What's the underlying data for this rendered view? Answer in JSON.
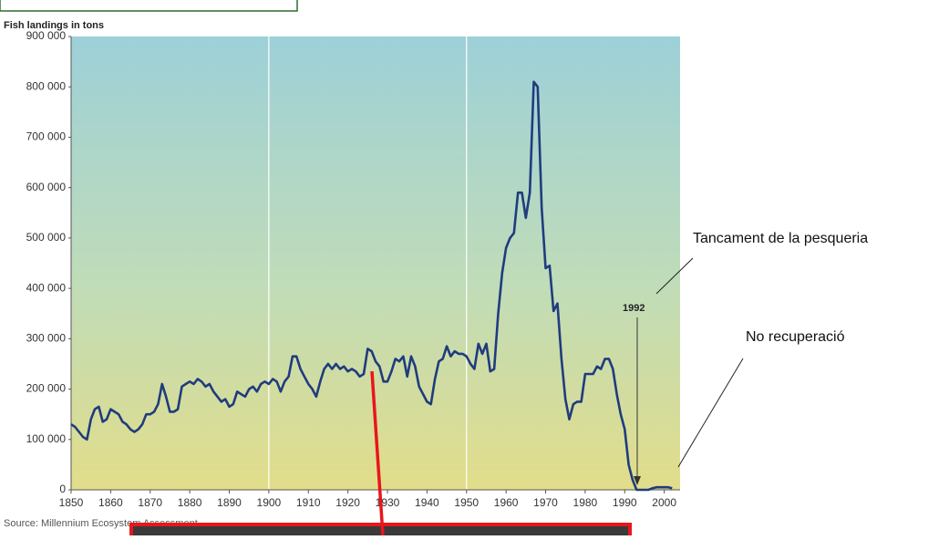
{
  "chart_data": {
    "type": "line",
    "title": "Fish landings in tons",
    "source": "Source: Millennium Ecosystem Assessment",
    "annotations": [
      "1992",
      "Tancament de la pesqueria",
      "No recuperació"
    ],
    "x": [
      1850,
      1851,
      1852,
      1853,
      1854,
      1855,
      1856,
      1857,
      1858,
      1859,
      1860,
      1861,
      1862,
      1863,
      1864,
      1865,
      1866,
      1867,
      1868,
      1869,
      1870,
      1871,
      1872,
      1873,
      1874,
      1875,
      1876,
      1877,
      1878,
      1879,
      1880,
      1881,
      1882,
      1883,
      1884,
      1885,
      1886,
      1887,
      1888,
      1889,
      1890,
      1891,
      1892,
      1893,
      1894,
      1895,
      1896,
      1897,
      1898,
      1899,
      1900,
      1901,
      1902,
      1903,
      1904,
      1905,
      1906,
      1907,
      1908,
      1909,
      1910,
      1911,
      1912,
      1913,
      1914,
      1915,
      1916,
      1917,
      1918,
      1919,
      1920,
      1921,
      1922,
      1923,
      1924,
      1925,
      1926,
      1927,
      1928,
      1929,
      1930,
      1931,
      1932,
      1933,
      1934,
      1935,
      1936,
      1937,
      1938,
      1939,
      1940,
      1941,
      1942,
      1943,
      1944,
      1945,
      1946,
      1947,
      1948,
      1949,
      1950,
      1951,
      1952,
      1953,
      1954,
      1955,
      1956,
      1957,
      1958,
      1959,
      1960,
      1961,
      1962,
      1963,
      1964,
      1965,
      1966,
      1967,
      1968,
      1969,
      1970,
      1971,
      1972,
      1973,
      1974,
      1975,
      1976,
      1977,
      1978,
      1979,
      1980,
      1981,
      1982,
      1983,
      1984,
      1985,
      1986,
      1987,
      1988,
      1989,
      1990,
      1991,
      1992,
      1993,
      1994,
      1995,
      1996,
      1997,
      1998,
      1999,
      2000,
      2001,
      2002
    ],
    "series": [
      {
        "name": "Fish landings",
        "color": "#1f3c7e",
        "values": [
          130000,
          125000,
          115000,
          105000,
          100000,
          140000,
          160000,
          165000,
          135000,
          140000,
          160000,
          155000,
          150000,
          135000,
          130000,
          120000,
          115000,
          120000,
          130000,
          150000,
          150000,
          155000,
          170000,
          210000,
          185000,
          155000,
          155000,
          160000,
          205000,
          210000,
          215000,
          210000,
          220000,
          215000,
          205000,
          210000,
          195000,
          185000,
          175000,
          180000,
          165000,
          170000,
          195000,
          190000,
          185000,
          200000,
          205000,
          195000,
          210000,
          215000,
          210000,
          220000,
          215000,
          195000,
          215000,
          225000,
          265000,
          265000,
          240000,
          225000,
          210000,
          200000,
          185000,
          215000,
          240000,
          250000,
          240000,
          250000,
          240000,
          245000,
          235000,
          240000,
          235000,
          225000,
          230000,
          280000,
          275000,
          255000,
          245000,
          215000,
          215000,
          235000,
          260000,
          255000,
          265000,
          225000,
          265000,
          245000,
          205000,
          190000,
          175000,
          170000,
          220000,
          255000,
          260000,
          285000,
          265000,
          275000,
          270000,
          270000,
          265000,
          250000,
          240000,
          290000,
          270000,
          290000,
          235000,
          240000,
          350000,
          430000,
          480000,
          500000,
          510000,
          590000,
          590000,
          540000,
          590000,
          810000,
          800000,
          560000,
          440000,
          445000,
          355000,
          370000,
          260000,
          180000,
          140000,
          170000,
          175000,
          175000,
          230000,
          230000,
          230000,
          245000,
          240000,
          260000,
          260000,
          240000,
          190000,
          150000,
          120000,
          50000,
          20000,
          0,
          0,
          0,
          0,
          3000,
          5000,
          5000,
          5000,
          5000,
          3000
        ]
      }
    ],
    "xlim": [
      1850,
      2004
    ],
    "xticks": [
      1850,
      1860,
      1870,
      1880,
      1890,
      1900,
      1910,
      1920,
      1930,
      1940,
      1950,
      1960,
      1970,
      1980,
      1990,
      2000
    ],
    "ylim": [
      0,
      900000
    ],
    "yticks": [
      0,
      {
        "value": 100000,
        "label": "100 000"
      },
      {
        "value": 200000,
        "label": "200 000"
      },
      {
        "value": 300000,
        "label": "300 000"
      },
      {
        "value": 400000,
        "label": "400 000"
      },
      {
        "value": 500000,
        "label": "500 000"
      },
      {
        "value": 600000,
        "label": "600 000"
      },
      {
        "value": 700000,
        "label": "700 000"
      },
      {
        "value": 800000,
        "label": "800 000"
      },
      {
        "value": 900000,
        "label": "900 000"
      }
    ],
    "xgrid": [
      1900,
      1950
    ]
  }
}
